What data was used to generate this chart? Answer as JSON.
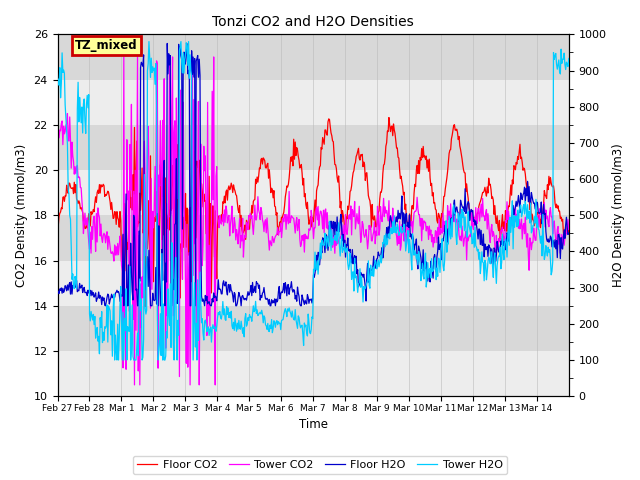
{
  "title": "Tonzi CO2 and H2O Densities",
  "xlabel": "Time",
  "ylabel_left": "CO2 Density (mmol/m3)",
  "ylabel_right": "H2O Density (mmol/m3)",
  "ylim_left": [
    10,
    26
  ],
  "ylim_right": [
    0,
    1000
  ],
  "yticks_left": [
    10,
    12,
    14,
    16,
    18,
    20,
    22,
    24,
    26
  ],
  "yticks_right": [
    0,
    100,
    200,
    300,
    400,
    500,
    600,
    700,
    800,
    900,
    1000
  ],
  "xtick_labels": [
    "Feb 27",
    "Feb 28",
    "Mar 1",
    "Mar 2",
    "Mar 3",
    "Mar 4",
    "Mar 5",
    "Mar 6",
    "Mar 7",
    "Mar 8",
    "Mar 9",
    "Mar 10",
    "Mar 11",
    "Mar 12",
    "Mar 13",
    "Mar 14"
  ],
  "annotation_text": "TZ_mixed",
  "annotation_facecolor": "#ffff99",
  "annotation_edgecolor": "#cc0000",
  "line_colors": {
    "floor_co2": "#ff0000",
    "tower_co2": "#ff00ff",
    "floor_h2o": "#0000cc",
    "tower_h2o": "#00ccff"
  },
  "legend_labels": [
    "Floor CO2",
    "Tower CO2",
    "Floor H2O",
    "Tower H2O"
  ],
  "plot_bg_color": "#d8d8d8",
  "white_band_color": "#ebebeb",
  "seed": 42,
  "n_points": 672
}
